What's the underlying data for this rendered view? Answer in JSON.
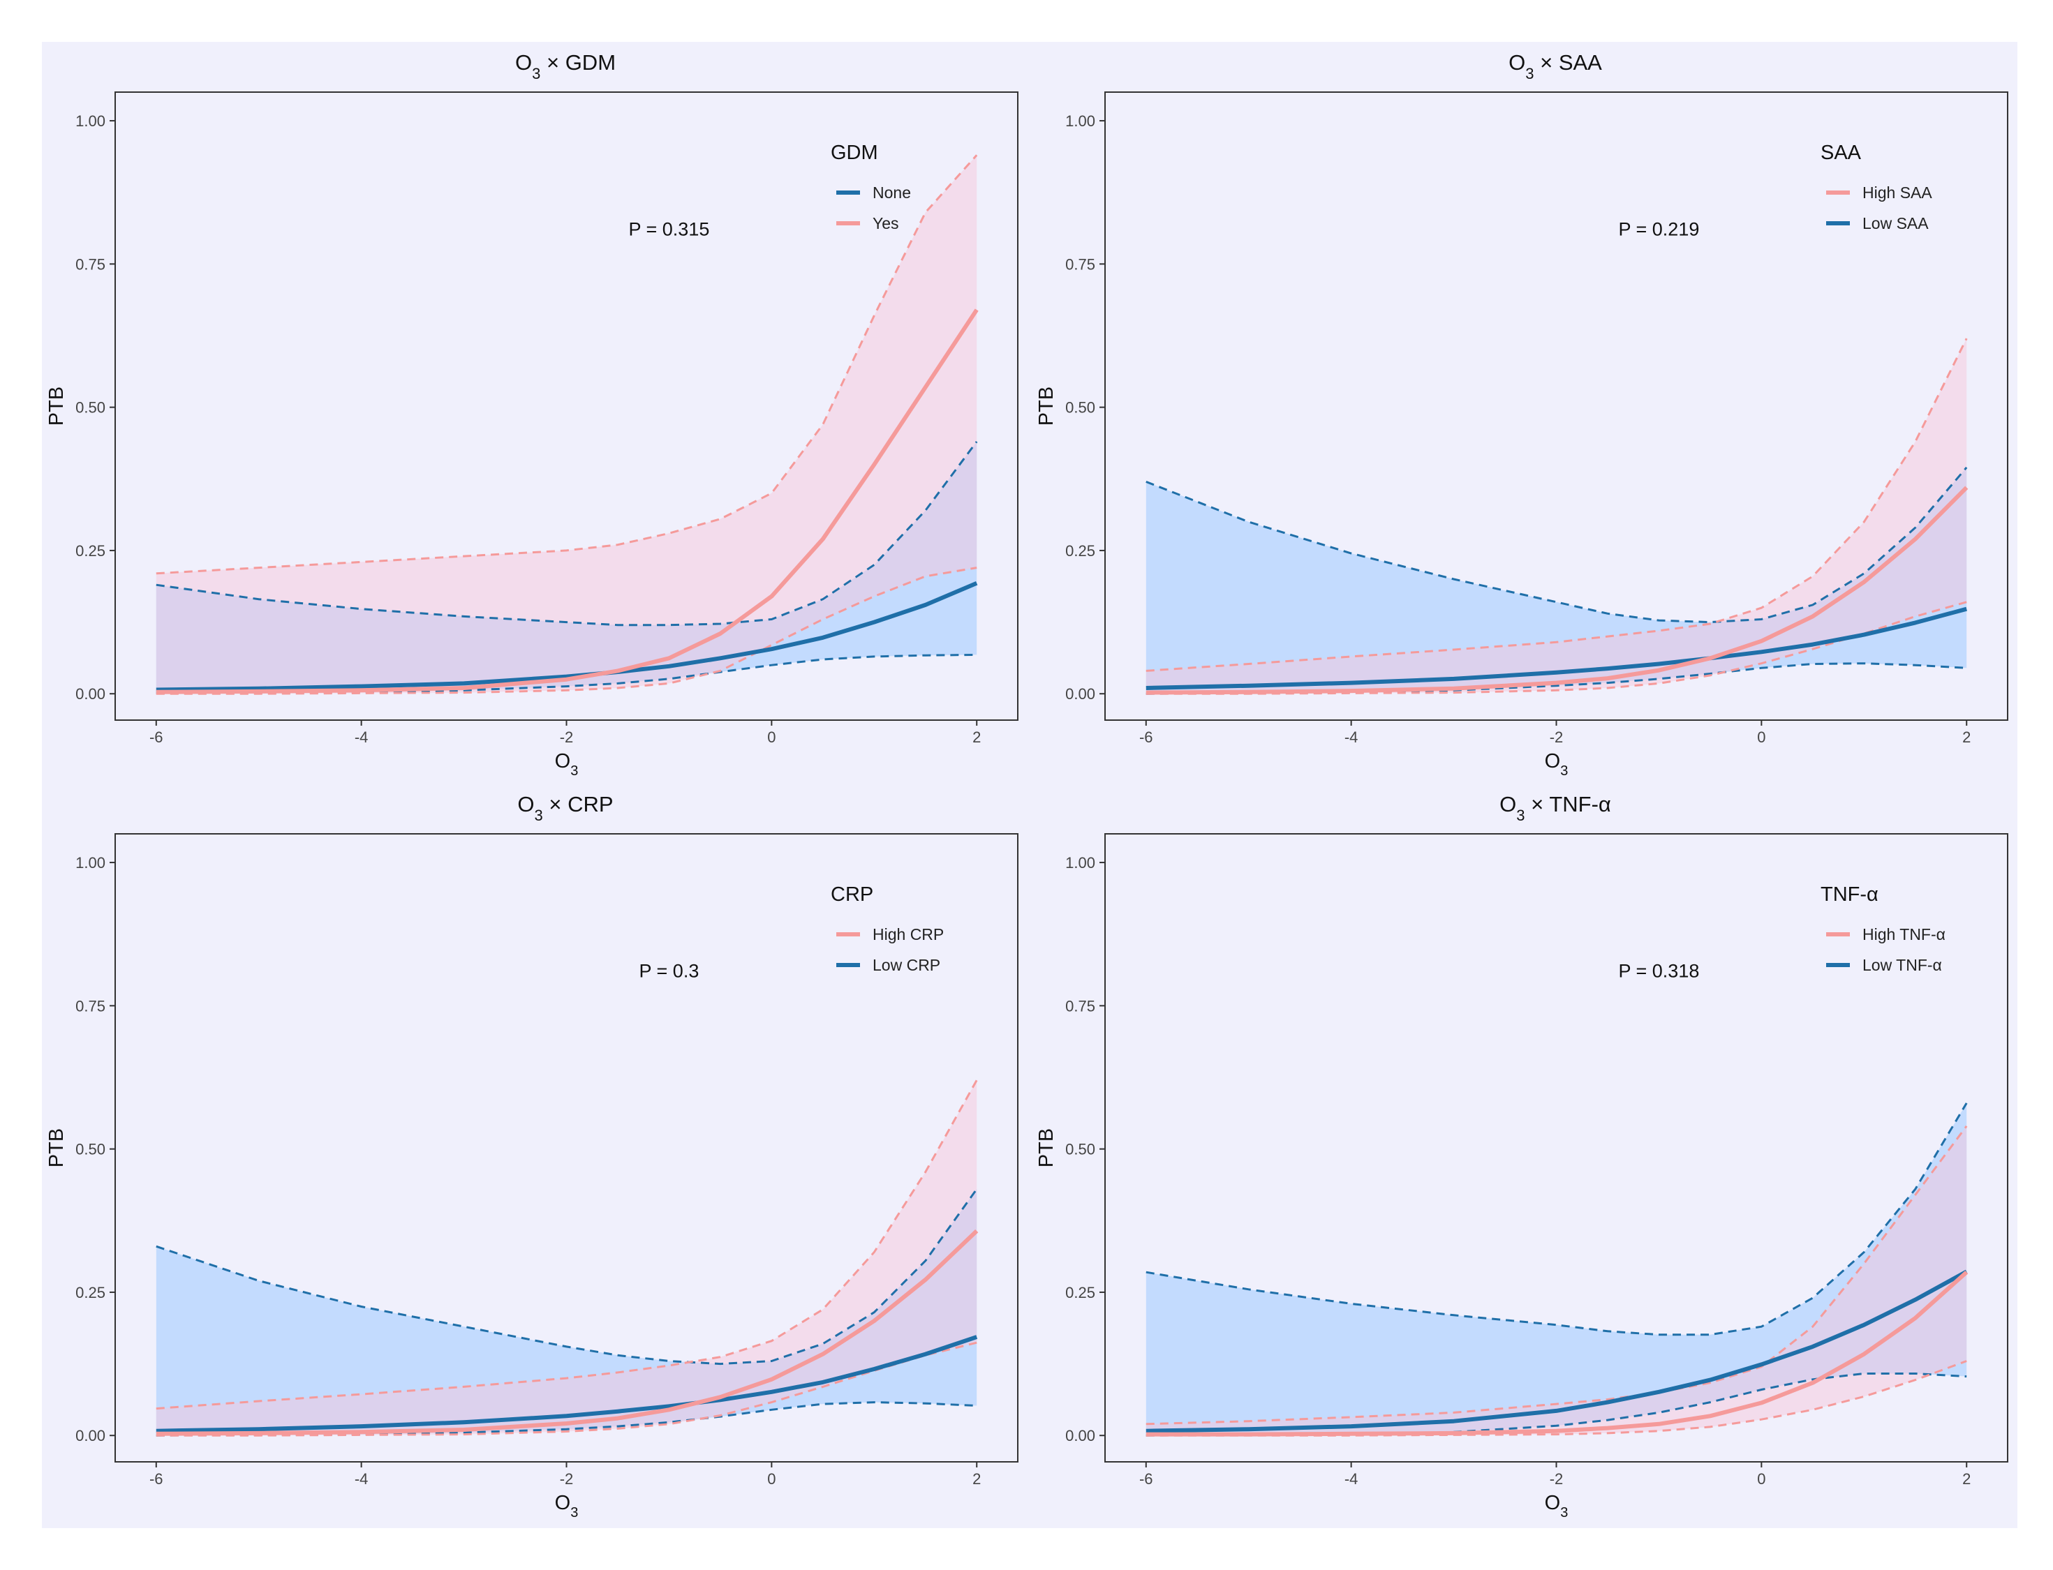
{
  "chart_data": [
    {
      "type": "line",
      "title_base": "O",
      "title_sub": "3",
      "title_rest": " × GDM",
      "xlabel_base": "O",
      "xlabel_sub": "3",
      "ylabel": "PTB",
      "xlim": [
        -6.4,
        2.4
      ],
      "ylim": [
        -0.046,
        1.05
      ],
      "xticks": [
        -6,
        -4,
        -2,
        0,
        2
      ],
      "xtick_labels": [
        "-6",
        "-4",
        "-2",
        "0",
        "2"
      ],
      "yticks": [
        0,
        0.25,
        0.5,
        0.75,
        1
      ],
      "ytick_labels": [
        "0.00",
        "0.25",
        "0.50",
        "0.75",
        "1.00"
      ],
      "annotation": "P = 0.315",
      "legend_title": "GDM",
      "legend_position": "top-right",
      "x": [
        -6,
        -5,
        -4,
        -3,
        -2,
        -1.5,
        -1,
        -0.5,
        0,
        0.5,
        1,
        1.5,
        2
      ],
      "series": [
        {
          "name": "None",
          "color": "#1f6fa8",
          "fill": "#9ecbff",
          "values": [
            0.007,
            0.009,
            0.013,
            0.018,
            0.03,
            0.038,
            0.048,
            0.062,
            0.078,
            0.098,
            0.125,
            0.155,
            0.193
          ],
          "lower": [
            0.001,
            0.002,
            0.003,
            0.006,
            0.013,
            0.018,
            0.026,
            0.038,
            0.05,
            0.06,
            0.065,
            0.067,
            0.068
          ],
          "upper": [
            0.19,
            0.165,
            0.148,
            0.135,
            0.125,
            0.12,
            0.12,
            0.122,
            0.13,
            0.165,
            0.225,
            0.32,
            0.44
          ]
        },
        {
          "name": "Yes",
          "color": "#f59a9a",
          "fill": "#f5c8dc",
          "values": [
            0.003,
            0.004,
            0.006,
            0.01,
            0.025,
            0.04,
            0.062,
            0.105,
            0.17,
            0.27,
            0.4,
            0.535,
            0.67
          ],
          "lower": [
            0.0,
            0.0,
            0.001,
            0.002,
            0.006,
            0.01,
            0.018,
            0.04,
            0.085,
            0.13,
            0.17,
            0.205,
            0.22
          ],
          "upper": [
            0.21,
            0.22,
            0.23,
            0.24,
            0.25,
            0.26,
            0.28,
            0.305,
            0.35,
            0.47,
            0.66,
            0.84,
            0.94
          ]
        }
      ]
    },
    {
      "type": "line",
      "title_base": "O",
      "title_sub": "3",
      "title_rest": " × SAA",
      "xlabel_base": "O",
      "xlabel_sub": "3",
      "ylabel": "PTB",
      "xlim": [
        -6.4,
        2.4
      ],
      "ylim": [
        -0.046,
        1.05
      ],
      "xticks": [
        -6,
        -4,
        -2,
        0,
        2
      ],
      "xtick_labels": [
        "-6",
        "-4",
        "-2",
        "0",
        "2"
      ],
      "yticks": [
        0,
        0.25,
        0.5,
        0.75,
        1
      ],
      "ytick_labels": [
        "0.00",
        "0.25",
        "0.50",
        "0.75",
        "1.00"
      ],
      "annotation": "P = 0.219",
      "legend_title": "SAA",
      "legend_position": "top-right",
      "x": [
        -6,
        -5,
        -4,
        -3,
        -2,
        -1.5,
        -1,
        -0.5,
        0,
        0.5,
        1,
        1.5,
        2
      ],
      "series": [
        {
          "name": "Low SAA",
          "color": "#1f6fa8",
          "fill": "#9ecbff",
          "values": [
            0.01,
            0.014,
            0.019,
            0.026,
            0.037,
            0.044,
            0.052,
            0.062,
            0.073,
            0.086,
            0.103,
            0.124,
            0.148
          ],
          "lower": [
            0.0,
            0.001,
            0.003,
            0.006,
            0.014,
            0.019,
            0.026,
            0.035,
            0.045,
            0.052,
            0.053,
            0.05,
            0.045
          ],
          "upper": [
            0.37,
            0.3,
            0.245,
            0.2,
            0.16,
            0.14,
            0.128,
            0.125,
            0.13,
            0.155,
            0.21,
            0.29,
            0.395
          ]
        },
        {
          "name": "High SAA",
          "color": "#f59a9a",
          "fill": "#f5c8dc",
          "values": [
            0.002,
            0.003,
            0.005,
            0.009,
            0.019,
            0.027,
            0.041,
            0.062,
            0.092,
            0.135,
            0.195,
            0.27,
            0.36
          ],
          "lower": [
            0.0,
            0.0,
            0.001,
            0.002,
            0.006,
            0.01,
            0.018,
            0.032,
            0.053,
            0.078,
            0.105,
            0.135,
            0.16
          ],
          "upper": [
            0.04,
            0.052,
            0.065,
            0.077,
            0.09,
            0.1,
            0.11,
            0.122,
            0.15,
            0.205,
            0.3,
            0.44,
            0.62
          ]
        }
      ]
    },
    {
      "type": "line",
      "title_base": "O",
      "title_sub": "3",
      "title_rest": " × CRP",
      "xlabel_base": "O",
      "xlabel_sub": "3",
      "ylabel": "PTB",
      "xlim": [
        -6.4,
        2.4
      ],
      "ylim": [
        -0.046,
        1.05
      ],
      "xticks": [
        -6,
        -4,
        -2,
        0,
        2
      ],
      "xtick_labels": [
        "-6",
        "-4",
        "-2",
        "0",
        "2"
      ],
      "yticks": [
        0,
        0.25,
        0.5,
        0.75,
        1
      ],
      "ytick_labels": [
        "0.00",
        "0.25",
        "0.50",
        "0.75",
        "1.00"
      ],
      "annotation": "P = 0.3",
      "legend_title": "CRP",
      "legend_position": "top-right",
      "x": [
        -6,
        -5,
        -4,
        -3,
        -2,
        -1.5,
        -1,
        -0.5,
        0,
        0.5,
        1,
        1.5,
        2
      ],
      "series": [
        {
          "name": "Low CRP",
          "color": "#1f6fa8",
          "fill": "#9ecbff",
          "values": [
            0.008,
            0.011,
            0.016,
            0.023,
            0.034,
            0.042,
            0.051,
            0.062,
            0.076,
            0.093,
            0.116,
            0.142,
            0.172
          ],
          "lower": [
            0.0,
            0.001,
            0.002,
            0.005,
            0.011,
            0.016,
            0.023,
            0.033,
            0.045,
            0.055,
            0.058,
            0.056,
            0.052
          ],
          "upper": [
            0.33,
            0.27,
            0.225,
            0.19,
            0.155,
            0.14,
            0.13,
            0.125,
            0.13,
            0.16,
            0.215,
            0.305,
            0.43
          ]
        },
        {
          "name": "High CRP",
          "color": "#f59a9a",
          "fill": "#f5c8dc",
          "values": [
            0.003,
            0.004,
            0.006,
            0.01,
            0.021,
            0.03,
            0.045,
            0.067,
            0.098,
            0.142,
            0.2,
            0.272,
            0.357
          ],
          "lower": [
            0.0,
            0.0,
            0.001,
            0.002,
            0.007,
            0.012,
            0.02,
            0.035,
            0.058,
            0.085,
            0.113,
            0.14,
            0.162
          ],
          "upper": [
            0.047,
            0.06,
            0.072,
            0.085,
            0.1,
            0.11,
            0.122,
            0.137,
            0.165,
            0.22,
            0.32,
            0.46,
            0.62
          ]
        }
      ]
    },
    {
      "type": "line",
      "title_base": "O",
      "title_sub": "3",
      "title_rest": " × TNF-α",
      "xlabel_base": "O",
      "xlabel_sub": "3",
      "ylabel": "PTB",
      "xlim": [
        -6.4,
        2.4
      ],
      "ylim": [
        -0.046,
        1.05
      ],
      "xticks": [
        -6,
        -4,
        -2,
        0,
        2
      ],
      "xtick_labels": [
        "-6",
        "-4",
        "-2",
        "0",
        "2"
      ],
      "yticks": [
        0,
        0.25,
        0.5,
        0.75,
        1
      ],
      "ytick_labels": [
        "0.00",
        "0.25",
        "0.50",
        "0.75",
        "1.00"
      ],
      "annotation": "P = 0.318",
      "legend_title": "TNF-α",
      "legend_position": "top-right",
      "x": [
        -6,
        -5,
        -4,
        -3,
        -2,
        -1.5,
        -1,
        -0.5,
        0,
        0.5,
        1,
        1.5,
        2
      ],
      "series": [
        {
          "name": "Low TNF-α",
          "color": "#1f6fa8",
          "fill": "#9ecbff",
          "values": [
            0.008,
            0.011,
            0.016,
            0.025,
            0.043,
            0.058,
            0.076,
            0.097,
            0.124,
            0.155,
            0.193,
            0.237,
            0.286
          ],
          "lower": [
            0.0,
            0.001,
            0.002,
            0.006,
            0.017,
            0.027,
            0.04,
            0.058,
            0.08,
            0.098,
            0.108,
            0.108,
            0.103
          ],
          "upper": [
            0.285,
            0.255,
            0.23,
            0.21,
            0.193,
            0.182,
            0.176,
            0.176,
            0.19,
            0.24,
            0.32,
            0.43,
            0.58
          ]
        },
        {
          "name": "High TNF-α",
          "color": "#f59a9a",
          "fill": "#f5c8dc",
          "values": [
            0.002,
            0.002,
            0.003,
            0.004,
            0.008,
            0.013,
            0.02,
            0.034,
            0.057,
            0.092,
            0.142,
            0.205,
            0.285
          ],
          "lower": [
            0.0,
            0.0,
            0.0,
            0.001,
            0.002,
            0.004,
            0.008,
            0.015,
            0.028,
            0.045,
            0.068,
            0.097,
            0.13
          ],
          "upper": [
            0.02,
            0.025,
            0.032,
            0.04,
            0.055,
            0.063,
            0.075,
            0.092,
            0.12,
            0.19,
            0.3,
            0.42,
            0.54
          ]
        }
      ]
    }
  ]
}
